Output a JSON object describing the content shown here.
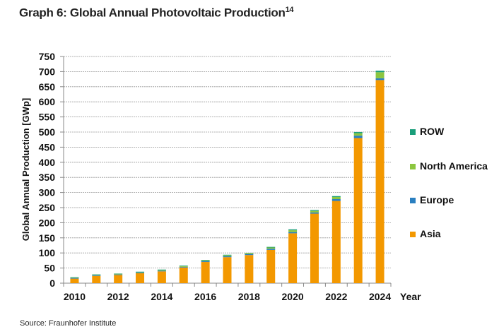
{
  "title": "Graph 6: Global Annual Photovoltaic Production",
  "title_sup": "14",
  "source": "Source: Fraunhofer Institute",
  "chart_data": {
    "type": "bar",
    "stacked": true,
    "title": "Graph 6: Global Annual Photovoltaic Production",
    "xlabel": "Year",
    "ylabel": "Global Annual Production [GWp]",
    "ylim": [
      0,
      750
    ],
    "yticks": [
      0,
      50,
      100,
      150,
      200,
      250,
      300,
      350,
      400,
      450,
      500,
      550,
      600,
      650,
      700,
      750
    ],
    "xtick_labels": [
      "2010",
      "2012",
      "2014",
      "2016",
      "2018",
      "2020",
      "2022",
      "2024"
    ],
    "categories": [
      "2010",
      "2011",
      "2012",
      "2013",
      "2014",
      "2015",
      "2016",
      "2017",
      "2018",
      "2019",
      "2020",
      "2021",
      "2022",
      "2023",
      "2024"
    ],
    "grid": true,
    "legend_position": "right",
    "series": [
      {
        "name": "Asia",
        "color": "#f39800",
        "values": [
          15,
          24,
          27,
          33,
          39,
          52,
          70,
          86,
          93,
          110,
          165,
          230,
          272,
          480,
          672
        ]
      },
      {
        "name": "Europe",
        "color": "#2a7fc0",
        "values": [
          2,
          2,
          2,
          2,
          2,
          2,
          3,
          3,
          3,
          4,
          4,
          4,
          6,
          8,
          6
        ]
      },
      {
        "name": "North America",
        "color": "#8cc63f",
        "values": [
          1,
          1,
          2,
          1,
          2,
          2,
          2,
          3,
          3,
          4,
          6,
          5,
          7,
          8,
          20
        ]
      },
      {
        "name": "ROW",
        "color": "#1a9e7a",
        "values": [
          2,
          2,
          1,
          2,
          2,
          2,
          2,
          2,
          1,
          2,
          3,
          3,
          3,
          4,
          5
        ]
      }
    ]
  }
}
